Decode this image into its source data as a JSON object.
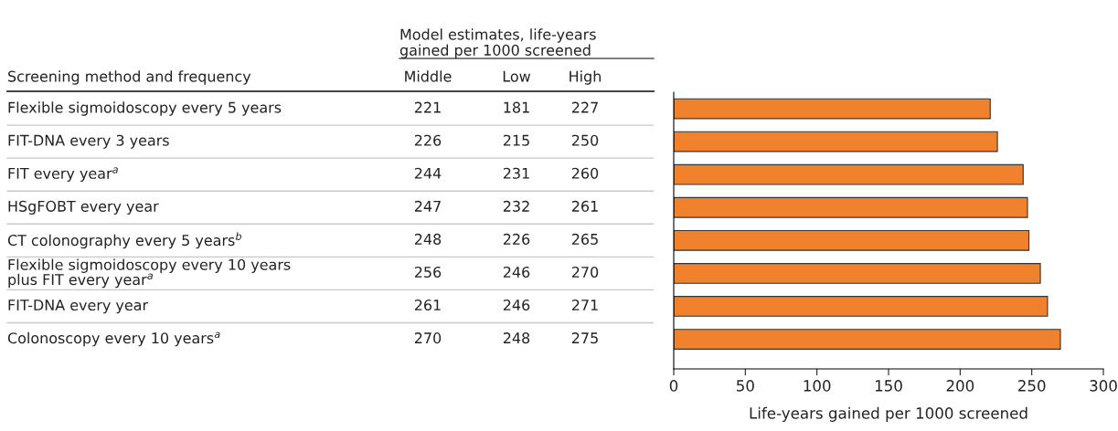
{
  "chart_data": [
    {
      "type": "other",
      "data_labels": true,
      "title": "Model estimates, life-years\ngained per 1000 screened",
      "annotations": [
        "Screening method and frequency"
      ],
      "categories": [
        "Flexible sigmoidoscopy every 5 years",
        "FIT-DNA every 3 years",
        "FIT every year$^{a}$",
        "HSgFOBT every year",
        "CT colonography every 5 years$^{b}$",
        "Flexible sigmoidoscopy every 10 years\nplus FIT every year$^{a}$",
        "FIT-DNA every year",
        "Colonoscopy every 10 years$^{a}$"
      ],
      "series": [
        {
          "name": "Middle",
          "values": [
            221,
            226,
            244,
            247,
            248,
            256,
            261,
            270
          ]
        },
        {
          "name": "Low",
          "values": [
            181,
            215,
            231,
            232,
            226,
            246,
            246,
            248
          ]
        },
        {
          "name": "High",
          "values": [
            227,
            250,
            260,
            261,
            265,
            270,
            271,
            275
          ]
        }
      ]
    },
    {
      "type": "bar",
      "orientation": "horizontal",
      "categories": [
        null,
        null,
        null,
        null,
        null,
        null,
        null,
        null
      ],
      "values": [
        221,
        226,
        244,
        247,
        248,
        256,
        261,
        270
      ],
      "color": "#f0822d",
      "xlim": [
        0,
        300
      ],
      "xticks": [
        0,
        50,
        100,
        150,
        200,
        250,
        300
      ],
      "xlabel": "Life-years gained per 1000 screened"
    }
  ]
}
